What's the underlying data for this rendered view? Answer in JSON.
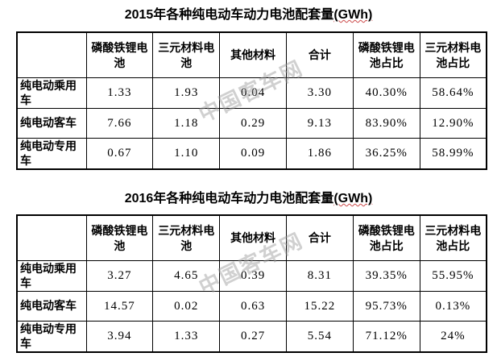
{
  "page": {
    "background_color": "#ffffff",
    "watermark_text": "中国客车网"
  },
  "tables": [
    {
      "title_main": "2015年各种纯电动车动力电池配套量",
      "title_unit": "(GWh)",
      "columns": [
        "",
        "磷酸铁锂电池",
        "三元材料电池",
        "其他材料",
        "合计",
        "磷酸铁锂电池占比",
        "三元材料电池占比"
      ],
      "rows": [
        {
          "label": "纯电动乘用车",
          "values": [
            "1.33",
            "1.93",
            "0.04",
            "3.30",
            "40.30%",
            "58.64%"
          ]
        },
        {
          "label": "纯电动客车",
          "values": [
            "7.66",
            "1.18",
            "0.29",
            "9.13",
            "83.90%",
            "12.90%"
          ]
        },
        {
          "label": "纯电动专用车",
          "values": [
            "0.67",
            "1.10",
            "0.09",
            "1.86",
            "36.25%",
            "58.99%"
          ]
        }
      ]
    },
    {
      "title_main": "2016年各种纯电动车动力电池配套量",
      "title_unit": "(GWh)",
      "columns": [
        "",
        "磷酸铁锂电池",
        "三元材料电池",
        "其他材料",
        "合计",
        "磷酸铁锂电池占比",
        "三元材料电池占比"
      ],
      "rows": [
        {
          "label": "纯电动乘用车",
          "values": [
            "3.27",
            "4.65",
            "0.39",
            "8.31",
            "39.35%",
            "55.95%"
          ]
        },
        {
          "label": "纯电动客车",
          "values": [
            "14.57",
            "0.02",
            "0.63",
            "15.22",
            "95.73%",
            "0.13%"
          ]
        },
        {
          "label": "纯电动专用车",
          "values": [
            "3.94",
            "1.33",
            "0.27",
            "5.54",
            "71.12%",
            "24%"
          ]
        }
      ]
    }
  ]
}
